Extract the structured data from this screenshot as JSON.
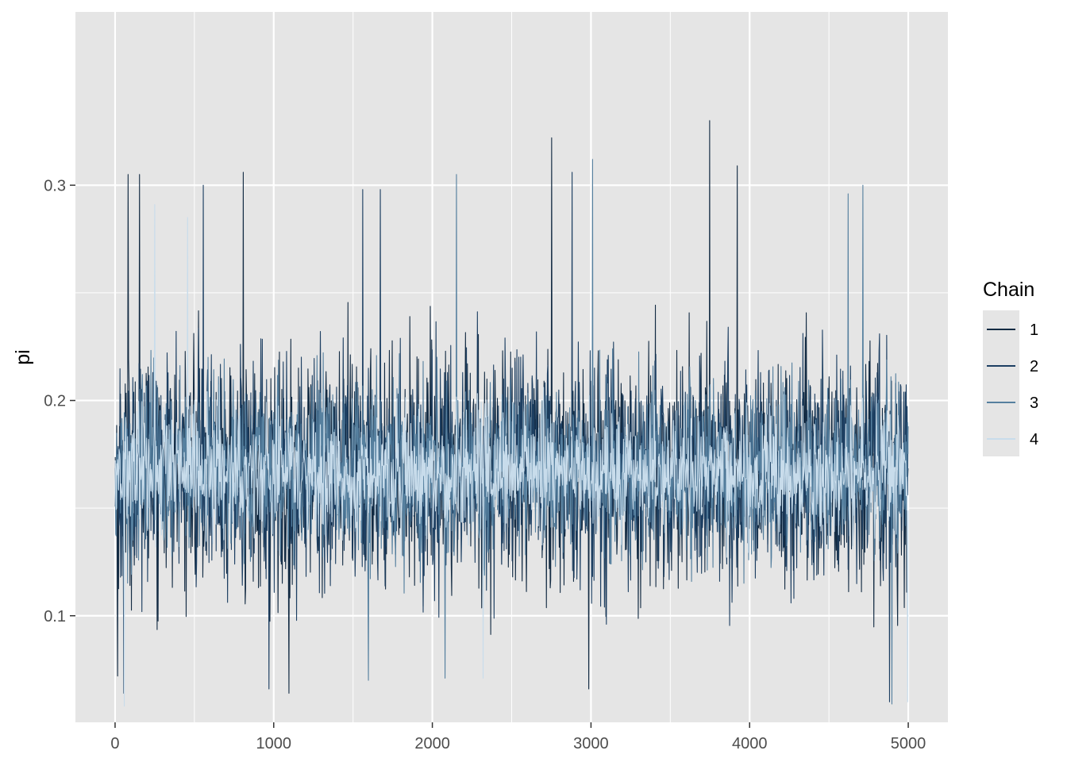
{
  "chart_data": {
    "type": "line",
    "title": "",
    "xlabel": "",
    "ylabel": "pi",
    "xlim": [
      -250,
      5250
    ],
    "ylim": [
      0.0505,
      0.3805
    ],
    "x_ticks": [
      0,
      1000,
      2000,
      3000,
      4000,
      5000
    ],
    "x_tick_labels": [
      "0",
      "1000",
      "2000",
      "3000",
      "4000",
      "5000"
    ],
    "y_ticks": [
      0.1,
      0.2,
      0.3
    ],
    "y_tick_labels": [
      "0.1",
      "0.2",
      "0.3"
    ],
    "y_minor_ticks": [
      0.05,
      0.15,
      0.25
    ],
    "grid": true,
    "panel_background": "#e5e5e5",
    "grid_color": "#ffffff",
    "legend": {
      "title": "Chain",
      "position": "right",
      "entries": [
        "1",
        "2",
        "3",
        "4"
      ]
    },
    "iterations": [
      1,
      5000
    ],
    "series": [
      {
        "name": "1",
        "color": "#132b43",
        "center": 0.168,
        "spread": 0.042,
        "spikes": [
          [
            82,
            0.305
          ],
          [
            152,
            0.305
          ],
          [
            808,
            0.306
          ],
          [
            2750,
            0.322
          ],
          [
            3748,
            0.33
          ],
          [
            3920,
            0.309
          ],
          [
            15,
            0.072
          ],
          [
            1095,
            0.064
          ],
          [
            2985,
            0.066
          ]
        ]
      },
      {
        "name": "2",
        "color": "#1d3f62",
        "center": 0.168,
        "spread": 0.04,
        "spikes": [
          [
            555,
            0.3
          ],
          [
            1560,
            0.298
          ],
          [
            2880,
            0.306
          ],
          [
            1670,
            0.298
          ],
          [
            55,
            0.064
          ],
          [
            968,
            0.066
          ],
          [
            4880,
            0.06
          ]
        ]
      },
      {
        "name": "3",
        "color": "#56809f",
        "center": 0.167,
        "spread": 0.032,
        "spikes": [
          [
            3008,
            0.312
          ],
          [
            2150,
            0.305
          ],
          [
            4712,
            0.3
          ],
          [
            4620,
            0.296
          ],
          [
            1595,
            0.07
          ],
          [
            2080,
            0.071
          ],
          [
            4895,
            0.059
          ]
        ]
      },
      {
        "name": "4",
        "color": "#c8dceb",
        "center": 0.167,
        "spread": 0.022,
        "spikes": [
          [
            250,
            0.291
          ],
          [
            455,
            0.285
          ],
          [
            56,
            0.058
          ],
          [
            4995,
            0.06
          ],
          [
            2320,
            0.071
          ]
        ]
      }
    ]
  }
}
